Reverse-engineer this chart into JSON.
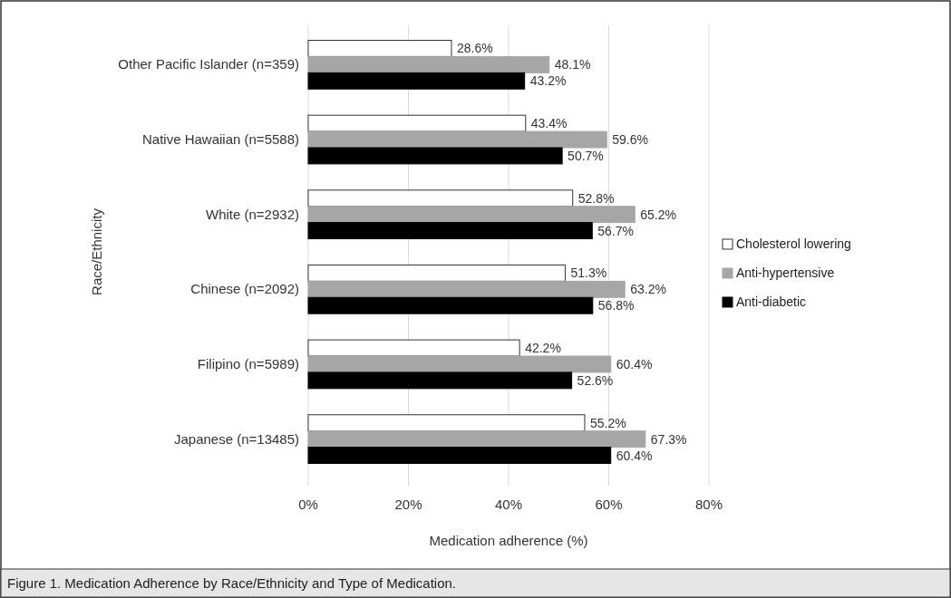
{
  "chart_data": {
    "type": "bar",
    "orientation": "horizontal",
    "ylabel": "Race/Ethnicity",
    "xlabel": "Medication adherence (%)",
    "categories": [
      "Other Pacific Islander (n=359)",
      "Native Hawaiian (n=5588)",
      "White (n=2932)",
      "Chinese (n=2092)",
      "Filipino (n=5989)",
      "Japanese (n=13485)"
    ],
    "series": [
      {
        "name": "Cholesterol lowering",
        "color": "#ffffff",
        "values": [
          28.6,
          43.4,
          52.8,
          51.3,
          42.2,
          55.2
        ],
        "value_labels": [
          "28.6%",
          "43.4%",
          "52.8%",
          "51.3%",
          "42.2%",
          "55.2%"
        ]
      },
      {
        "name": "Anti-hypertensive",
        "color": "#a6a6a6",
        "values": [
          48.1,
          59.6,
          65.2,
          63.2,
          60.4,
          67.3
        ],
        "value_labels": [
          "48.1%",
          "59.6%",
          "65.2%",
          "63.2%",
          "60.4%",
          "67.3%"
        ]
      },
      {
        "name": "Anti-diabetic",
        "color": "#000000",
        "values": [
          43.2,
          50.7,
          56.7,
          56.8,
          52.6,
          60.4
        ],
        "value_labels": [
          "43.2%",
          "50.7%",
          "56.7%",
          "56.8%",
          "52.6%",
          "60.4%"
        ]
      }
    ],
    "xlim": [
      0,
      80
    ],
    "xticks": [
      {
        "value": 0,
        "label": "0%"
      },
      {
        "value": 20,
        "label": "20%"
      },
      {
        "value": 40,
        "label": "40%"
      },
      {
        "value": 60,
        "label": "60%"
      },
      {
        "value": 80,
        "label": "80%"
      }
    ],
    "grid": "x",
    "legend": "right",
    "annotations": [
      "Figure 1. Medication Adherence by Race/Ethnicity and Type of Medication."
    ]
  }
}
